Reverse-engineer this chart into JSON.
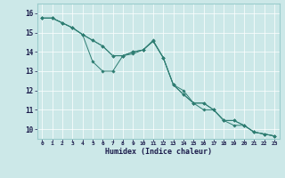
{
  "xlabel": "Humidex (Indice chaleur)",
  "background_color": "#cce8e8",
  "grid_color": "#ffffff",
  "line_color": "#2e7d72",
  "xlim": [
    -0.5,
    23.5
  ],
  "ylim": [
    9.5,
    16.5
  ],
  "xticks": [
    0,
    1,
    2,
    3,
    4,
    5,
    6,
    7,
    8,
    9,
    10,
    11,
    12,
    13,
    14,
    15,
    16,
    17,
    18,
    19,
    20,
    21,
    22,
    23
  ],
  "yticks": [
    10,
    11,
    12,
    13,
    14,
    15,
    16
  ],
  "series": [
    [
      15.75,
      15.75,
      15.5,
      15.25,
      14.9,
      13.5,
      13.0,
      13.0,
      13.8,
      13.9,
      14.1,
      14.6,
      13.7,
      12.3,
      11.8,
      11.35,
      11.35,
      11.0,
      10.45,
      10.45,
      10.2,
      9.85,
      9.75,
      9.65
    ],
    [
      15.75,
      15.75,
      15.5,
      15.25,
      14.9,
      14.6,
      14.3,
      13.8,
      13.8,
      14.0,
      14.1,
      14.55,
      13.7,
      12.3,
      11.8,
      11.35,
      11.35,
      11.0,
      10.45,
      10.45,
      10.2,
      9.85,
      9.75,
      9.65
    ],
    [
      15.75,
      15.75,
      15.5,
      15.25,
      14.9,
      14.6,
      14.3,
      13.8,
      13.8,
      14.0,
      14.1,
      14.55,
      13.7,
      12.3,
      12.0,
      11.35,
      11.0,
      11.0,
      10.45,
      10.2,
      10.2,
      9.85,
      9.75,
      9.65
    ]
  ]
}
